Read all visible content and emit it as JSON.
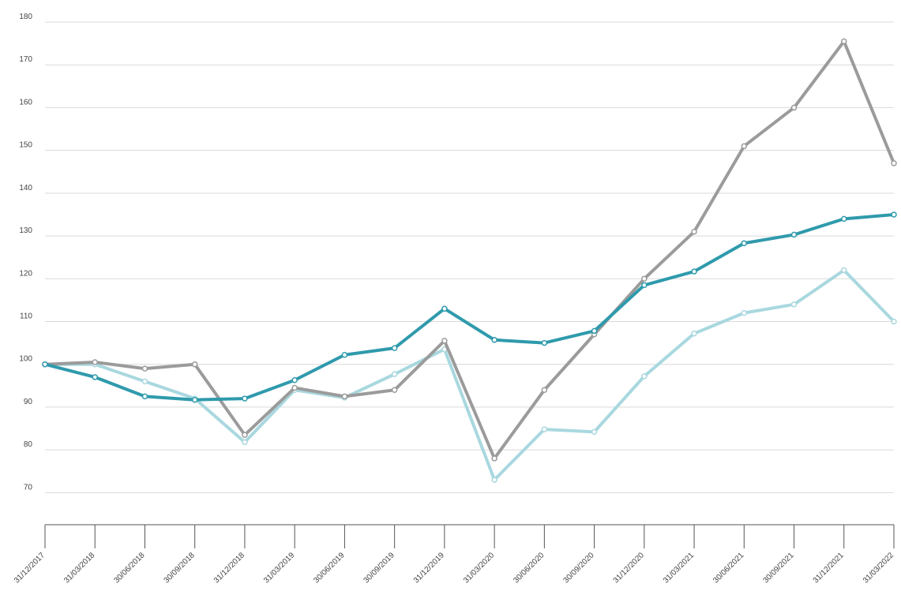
{
  "chart_data": {
    "type": "line",
    "categories": [
      "31/12/2017",
      "31/03/2018",
      "30/06/2018",
      "30/09/2018",
      "31/12/2018",
      "31/03/2019",
      "30/06/2019",
      "30/09/2019",
      "31/12/2019",
      "31/03/2020",
      "30/06/2020",
      "30/09/2020",
      "31/12/2020",
      "31/03/2021",
      "30/06/2021",
      "30/09/2021",
      "31/12/2021",
      "31/03/2022"
    ],
    "series": [
      {
        "color": "#a9d8df",
        "values": [
          100,
          100,
          96,
          92,
          81.8,
          94,
          92.2,
          97.7,
          103.5,
          73,
          84.8,
          84.2,
          97.2,
          107.2,
          112,
          114,
          122,
          110
        ]
      },
      {
        "color": "#9b9b9b",
        "values": [
          100,
          100.5,
          99,
          100,
          83.5,
          94.5,
          92.5,
          94,
          105.5,
          78,
          94,
          107,
          120,
          131,
          151,
          160,
          175.5,
          147
        ]
      },
      {
        "color": "#2f9aac",
        "values": [
          100,
          97,
          92.5,
          91.7,
          92,
          96.3,
          102.2,
          103.8,
          113,
          105.7,
          105,
          107.8,
          118.5,
          121.7,
          128.3,
          130.3,
          134,
          135
        ]
      }
    ],
    "ylim": [
      62.5,
      180
    ],
    "yticks": [
      70,
      80,
      90,
      100,
      110,
      120,
      130,
      140,
      150,
      160,
      170,
      180
    ],
    "grid": true
  }
}
